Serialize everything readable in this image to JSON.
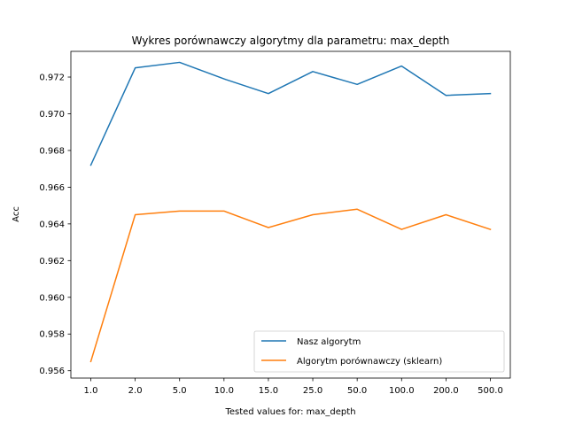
{
  "chart_data": {
    "type": "line",
    "title": "Wykres porównawczy algorytmy dla parametru: max_depth",
    "xlabel": "Tested values for: max_depth",
    "ylabel": "Acc",
    "categories": [
      "1.0",
      "2.0",
      "5.0",
      "10.0",
      "15.0",
      "25.0",
      "50.0",
      "100.0",
      "200.0",
      "500.0"
    ],
    "ylim": [
      0.9556,
      0.9734
    ],
    "yticks": [
      "0.956",
      "0.958",
      "0.960",
      "0.962",
      "0.964",
      "0.966",
      "0.968",
      "0.970",
      "0.972"
    ],
    "grid": false,
    "legend_position": "lower-right",
    "series": [
      {
        "name": "Nasz algorytm",
        "color": "#1f77b4",
        "values": [
          0.9672,
          0.9725,
          0.9728,
          0.9719,
          0.9711,
          0.9723,
          0.9716,
          0.9726,
          0.971,
          0.9711
        ]
      },
      {
        "name": "Algorytm porównawczy (sklearn)",
        "color": "#ff7f0e",
        "values": [
          0.9565,
          0.9645,
          0.9647,
          0.9647,
          0.9638,
          0.9645,
          0.9648,
          0.9637,
          0.9645,
          0.9637
        ]
      }
    ]
  }
}
